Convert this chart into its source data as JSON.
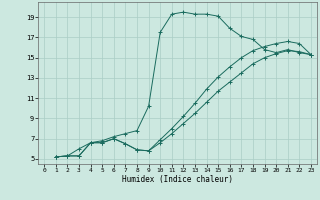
{
  "title": "",
  "xlabel": "Humidex (Indice chaleur)",
  "ylabel": "",
  "bg_color": "#cce8e0",
  "grid_color": "#aacec6",
  "line_color": "#1a6b5e",
  "xlim": [
    -0.5,
    23.5
  ],
  "ylim": [
    4.5,
    20.5
  ],
  "yticks": [
    5,
    7,
    9,
    11,
    13,
    15,
    17,
    19
  ],
  "xticks": [
    0,
    1,
    2,
    3,
    4,
    5,
    6,
    7,
    8,
    9,
    10,
    11,
    12,
    13,
    14,
    15,
    16,
    17,
    18,
    19,
    20,
    21,
    22,
    23
  ],
  "line1_x": [
    1,
    2,
    3,
    4,
    5,
    6,
    7,
    8,
    9,
    10,
    11,
    12,
    13,
    14,
    15,
    16,
    17,
    18,
    19,
    20,
    21,
    22,
    23
  ],
  "line1_y": [
    5.2,
    5.3,
    6.0,
    6.6,
    6.8,
    7.2,
    7.5,
    7.8,
    10.2,
    17.5,
    19.3,
    19.5,
    19.3,
    19.3,
    19.1,
    17.9,
    17.1,
    16.8,
    15.8,
    15.5,
    15.8,
    15.5,
    15.3
  ],
  "line2_x": [
    1,
    2,
    3,
    4,
    5,
    6,
    7,
    8,
    9,
    10,
    11,
    12,
    13,
    14,
    15,
    16,
    17,
    18,
    19,
    20,
    21,
    22,
    23
  ],
  "line2_y": [
    5.2,
    5.3,
    5.3,
    6.6,
    6.6,
    7.0,
    6.5,
    5.9,
    5.8,
    6.9,
    8.0,
    9.2,
    10.5,
    11.9,
    13.1,
    14.1,
    15.0,
    15.7,
    16.1,
    16.4,
    16.6,
    16.4,
    15.3
  ],
  "line3_x": [
    1,
    2,
    3,
    4,
    5,
    6,
    7,
    8,
    9,
    10,
    11,
    12,
    13,
    14,
    15,
    16,
    17,
    18,
    19,
    20,
    21,
    22,
    23
  ],
  "line3_y": [
    5.2,
    5.3,
    5.3,
    6.6,
    6.6,
    7.0,
    6.5,
    5.9,
    5.8,
    6.6,
    7.5,
    8.5,
    9.5,
    10.6,
    11.7,
    12.6,
    13.5,
    14.4,
    15.0,
    15.4,
    15.7,
    15.6,
    15.3
  ]
}
